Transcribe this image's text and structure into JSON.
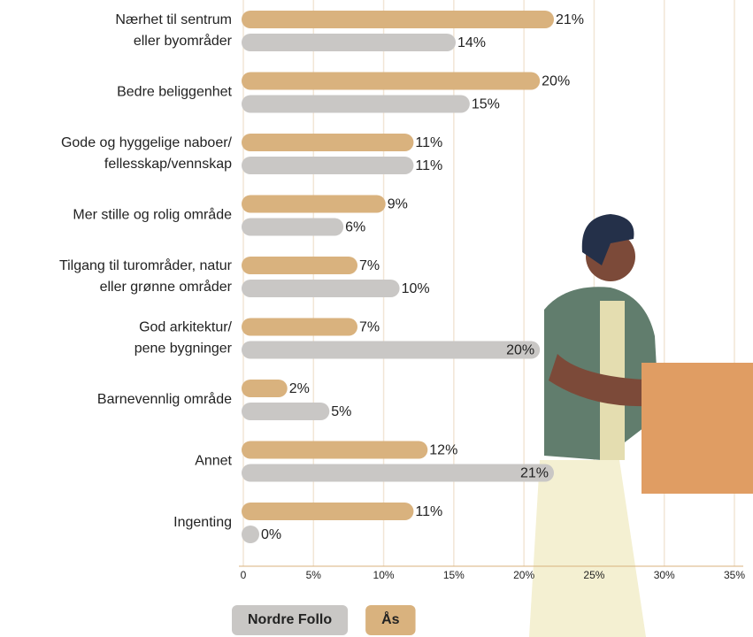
{
  "chart_data": {
    "type": "bar",
    "orientation": "horizontal",
    "categories": [
      "Nærhet til sentrum\neller byområder",
      "Bedre beliggenhet",
      "Gode og hyggelige naboer/\nfellesskap/vennskap",
      "Mer stille og rolig område",
      "Tilgang til turområder, natur\neller grønne områder",
      "God arkitektur/\npene bygninger",
      "Barnevennlig område",
      "Annet",
      "Ingenting"
    ],
    "series": [
      {
        "name": "Nordre Follo",
        "color": "#c9c7c5",
        "values": [
          14,
          15,
          11,
          6,
          10,
          20,
          5,
          21,
          0
        ],
        "value_labels": [
          "14%",
          "15%",
          "11%",
          "6%",
          "10%",
          "20%",
          "5%",
          "21%",
          "0%"
        ]
      },
      {
        "name": "Ås",
        "color": "#d9b27e",
        "values": [
          21,
          20,
          11,
          9,
          7,
          7,
          2,
          12,
          11
        ],
        "value_labels": [
          "21%",
          "20%",
          "11%",
          "9%",
          "7%",
          "7%",
          "2%",
          "12%",
          "11%"
        ]
      }
    ],
    "xlim": [
      0,
      35
    ],
    "xticks": [
      0,
      {
        "value": 5,
        "label": "5%"
      },
      {
        "value": 10,
        "label": "10%"
      },
      {
        "value": 15,
        "label": "15%"
      },
      {
        "value": 20,
        "label": "20%"
      },
      {
        "value": 25,
        "label": "25%"
      },
      {
        "value": 30,
        "label": "30%"
      },
      {
        "value": 35,
        "label": "35%"
      }
    ],
    "grid": true,
    "legend": "bottom"
  }
}
